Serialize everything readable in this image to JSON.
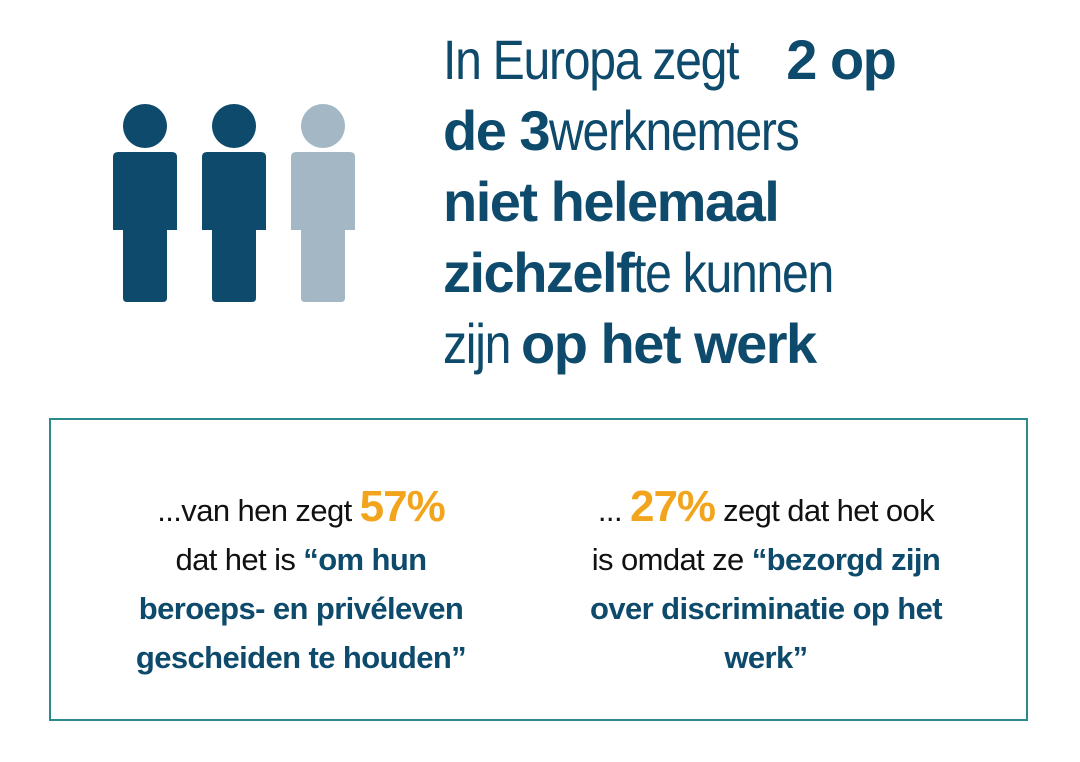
{
  "colors": {
    "dark_blue": "#0d4a6b",
    "light_blue_gray": "#a3b8c4",
    "orange": "#f2a51c",
    "teal_border": "#2a8a8c"
  },
  "icons": [
    "person-icon",
    "person-icon",
    "person-icon"
  ],
  "headline": {
    "l1_a": "In Europa zegt ",
    "l1_b": "2 op",
    "l2_a": "de 3",
    "l2_b": " werknemers",
    "l3": "niet helemaal",
    "l4_a": "zichzelf",
    "l4_b": " te kunnen",
    "l5_a": "zijn ",
    "l5_b": "op het werk"
  },
  "left_quote": {
    "r1_a": "...van hen zegt ",
    "r1_pct": "57%",
    "r2_a": "dat het is ",
    "r2_b": "“om hun",
    "r3": "beroeps- en privéleven",
    "r4": "gescheiden te houden”"
  },
  "right_quote": {
    "r1_a": "... ",
    "r1_pct": "27%",
    "r1_b": " zegt dat het ook",
    "r2_a": "is omdat ze ",
    "r2_b": "“bezorgd zijn",
    "r3": "over discriminatie op het",
    "r4": "werk”"
  }
}
